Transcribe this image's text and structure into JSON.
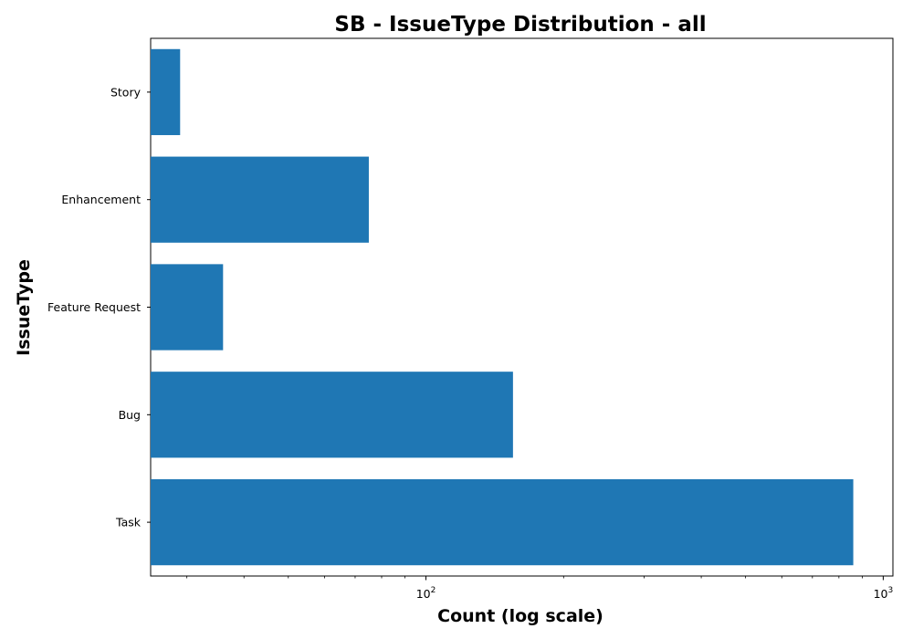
{
  "chart_data": {
    "type": "bar",
    "orientation": "horizontal",
    "title": "SB - IssueType Distribution - all",
    "xlabel": "Count (log scale)",
    "ylabel": "IssueType",
    "xscale": "log",
    "xlim": [
      25,
      1050
    ],
    "categories": [
      "Task",
      "Bug",
      "Feature Request",
      "Enhancement",
      "Story"
    ],
    "values": [
      860,
      155,
      36,
      75,
      29
    ],
    "xticks": [
      {
        "value": 100,
        "base": "10",
        "exp": "2"
      },
      {
        "value": 1000,
        "base": "10",
        "exp": "3"
      }
    ],
    "bar_color": "#1f77b4",
    "grid": false,
    "legend": "none"
  }
}
